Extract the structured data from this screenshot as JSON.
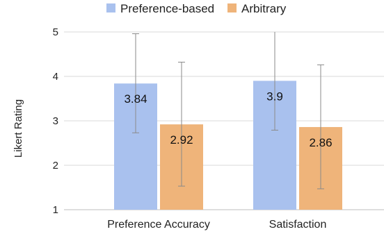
{
  "chart_data": {
    "type": "bar",
    "categories": [
      "Preference Accuracy",
      "Satisfaction"
    ],
    "series": [
      {
        "name": "Preference-based",
        "color": "#a9c1ee",
        "values": [
          3.84,
          3.9
        ],
        "error_low": [
          2.73,
          2.79
        ],
        "error_high": [
          4.96,
          5.02
        ]
      },
      {
        "name": "Arbitrary",
        "color": "#efb47a",
        "values": [
          2.92,
          2.86
        ],
        "error_low": [
          1.53,
          1.47
        ],
        "error_high": [
          4.32,
          4.26
        ]
      }
    ],
    "value_labels": [
      [
        "3.84",
        "3.9"
      ],
      [
        "2.92",
        "2.86"
      ]
    ],
    "ylabel": "Likert Rating",
    "xlabel": "",
    "ylim": [
      1,
      5
    ],
    "yticks": [
      "1",
      "2",
      "3",
      "4",
      "5"
    ],
    "grid": true,
    "legend_position": "top",
    "error_bar_color": "#8a8a8a",
    "grid_color": "#d9d9d9"
  }
}
